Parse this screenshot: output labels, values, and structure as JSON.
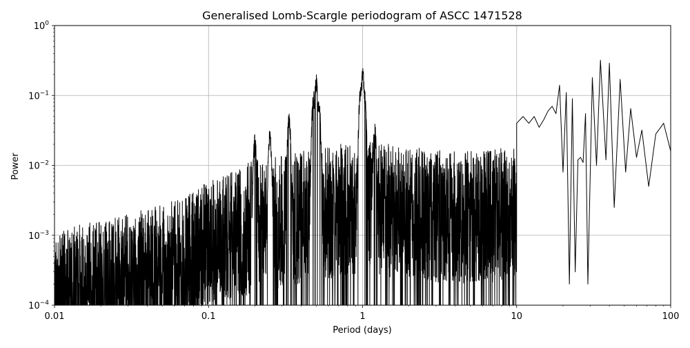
{
  "chart_data": {
    "type": "line",
    "title": "Generalised Lomb-Scargle periodogram of ASCC 1471528",
    "xlabel": "Period (days)",
    "ylabel": "Power",
    "xscale": "log",
    "yscale": "log",
    "xlim": [
      0.01,
      100
    ],
    "ylim": [
      0.0001,
      1
    ],
    "grid": true,
    "xticks": [
      {
        "value": 0.01,
        "label": "0.01"
      },
      {
        "value": 0.1,
        "label": "0.1"
      },
      {
        "value": 1,
        "label": "1"
      },
      {
        "value": 10,
        "label": "10"
      },
      {
        "value": 100,
        "label": "100"
      }
    ],
    "yticks": [
      {
        "value": 0.0001,
        "base": "10",
        "exp": "−4"
      },
      {
        "value": 0.001,
        "base": "10",
        "exp": "−3"
      },
      {
        "value": 0.01,
        "base": "10",
        "exp": "−2"
      },
      {
        "value": 0.1,
        "base": "10",
        "exp": "−1"
      },
      {
        "value": 1,
        "base": "10",
        "exp": "0"
      }
    ],
    "line_color": "#000000",
    "series": [
      {
        "envelope": [
          [
            0.01,
            0.0013
          ],
          [
            0.02,
            0.0016
          ],
          [
            0.03,
            0.002
          ],
          [
            0.05,
            0.0028
          ],
          [
            0.07,
            0.0035
          ],
          [
            0.1,
            0.006
          ],
          [
            0.15,
            0.009
          ],
          [
            0.2,
            0.012
          ],
          [
            0.3,
            0.014
          ],
          [
            0.5,
            0.018
          ],
          [
            0.7,
            0.02
          ],
          [
            1.0,
            0.022
          ],
          [
            1.5,
            0.02
          ],
          [
            2,
            0.018
          ],
          [
            3,
            0.017
          ],
          [
            5,
            0.016
          ],
          [
            7,
            0.017
          ],
          [
            10,
            0.02
          ]
        ],
        "peaks": [
          [
            0.333,
            0.06
          ],
          [
            0.5,
            0.21
          ],
          [
            0.48,
            0.12
          ],
          [
            0.52,
            0.1
          ],
          [
            0.25,
            0.035
          ],
          [
            0.2,
            0.028
          ],
          [
            1.0,
            0.26
          ],
          [
            0.97,
            0.15
          ],
          [
            1.03,
            0.12
          ],
          [
            1.2,
            0.04
          ]
        ],
        "long_period_points": [
          [
            10,
            0.04
          ],
          [
            11,
            0.05
          ],
          [
            12,
            0.04
          ],
          [
            13,
            0.05
          ],
          [
            14,
            0.035
          ],
          [
            15,
            0.045
          ],
          [
            16,
            0.06
          ],
          [
            17,
            0.07
          ],
          [
            18,
            0.055
          ],
          [
            19,
            0.14
          ],
          [
            20,
            0.008
          ],
          [
            21,
            0.11
          ],
          [
            22,
            0.0002
          ],
          [
            23,
            0.09
          ],
          [
            24,
            0.0003
          ],
          [
            25,
            0.012
          ],
          [
            26,
            0.013
          ],
          [
            27,
            0.011
          ],
          [
            28,
            0.055
          ],
          [
            29,
            0.0002
          ],
          [
            31,
            0.18
          ],
          [
            33,
            0.01
          ],
          [
            35,
            0.32
          ],
          [
            38,
            0.012
          ],
          [
            40,
            0.29
          ],
          [
            43,
            0.0025
          ],
          [
            47,
            0.17
          ],
          [
            51,
            0.008
          ],
          [
            55,
            0.065
          ],
          [
            60,
            0.013
          ],
          [
            65,
            0.032
          ],
          [
            72,
            0.005
          ],
          [
            80,
            0.028
          ],
          [
            90,
            0.04
          ],
          [
            100,
            0.016
          ]
        ]
      }
    ]
  }
}
